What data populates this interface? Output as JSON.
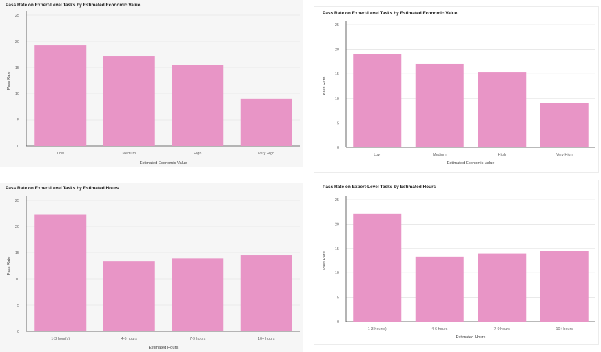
{
  "colors": {
    "bar": "#e895c6",
    "grid": "#dcdcdc"
  },
  "chart_data": [
    {
      "type": "bar",
      "title": "Pass Rate on Expert-Level Tasks by Estimated Economic Value",
      "xlabel": "Estimated Economic Value",
      "ylabel": "Pass Rate",
      "categories": [
        "Low",
        "Medium",
        "High",
        "Very High"
      ],
      "values": [
        19.2,
        17.1,
        15.4,
        9.1
      ],
      "ylim": [
        0,
        25
      ],
      "yticks": [
        "0",
        "5",
        "10",
        "15",
        "20",
        "25"
      ],
      "grid": true
    },
    {
      "type": "bar",
      "title": "Pass Rate on Expert-Level Tasks by Estimated Economic Value",
      "xlabel": "Estimated Economic Value",
      "ylabel": "Pass Rate",
      "categories": [
        "Low",
        "Medium",
        "High",
        "Very High"
      ],
      "values": [
        19.0,
        17.0,
        15.3,
        9.0
      ],
      "ylim": [
        0,
        25
      ],
      "yticks": [
        "0",
        "5",
        "10",
        "15",
        "20",
        "25"
      ],
      "grid": true
    },
    {
      "type": "bar",
      "title": "Pass Rate on Expert-Level Tasks by Estimated Hours",
      "xlabel": "Estimated Hours",
      "ylabel": "Pass Rate",
      "categories": [
        "1-3 hour(s)",
        "4-6 hours",
        "7-9 hours",
        "10+ hours"
      ],
      "values": [
        22.3,
        13.4,
        13.9,
        14.6
      ],
      "ylim": [
        0,
        25
      ],
      "yticks": [
        "0",
        "5",
        "10",
        "15",
        "20",
        "25"
      ],
      "grid": true
    },
    {
      "type": "bar",
      "title": "Pass Rate on Expert-Level Tasks by Estimated Hours",
      "xlabel": "Estimated Hours",
      "ylabel": "Pass Rate",
      "categories": [
        "1-3 hour(s)",
        "4-6 hours",
        "7-9 hours",
        "10+ hours"
      ],
      "values": [
        22.2,
        13.3,
        13.9,
        14.5
      ],
      "ylim": [
        0,
        25
      ],
      "yticks": [
        "0",
        "5",
        "10",
        "15",
        "20",
        "25"
      ],
      "grid": true
    }
  ]
}
